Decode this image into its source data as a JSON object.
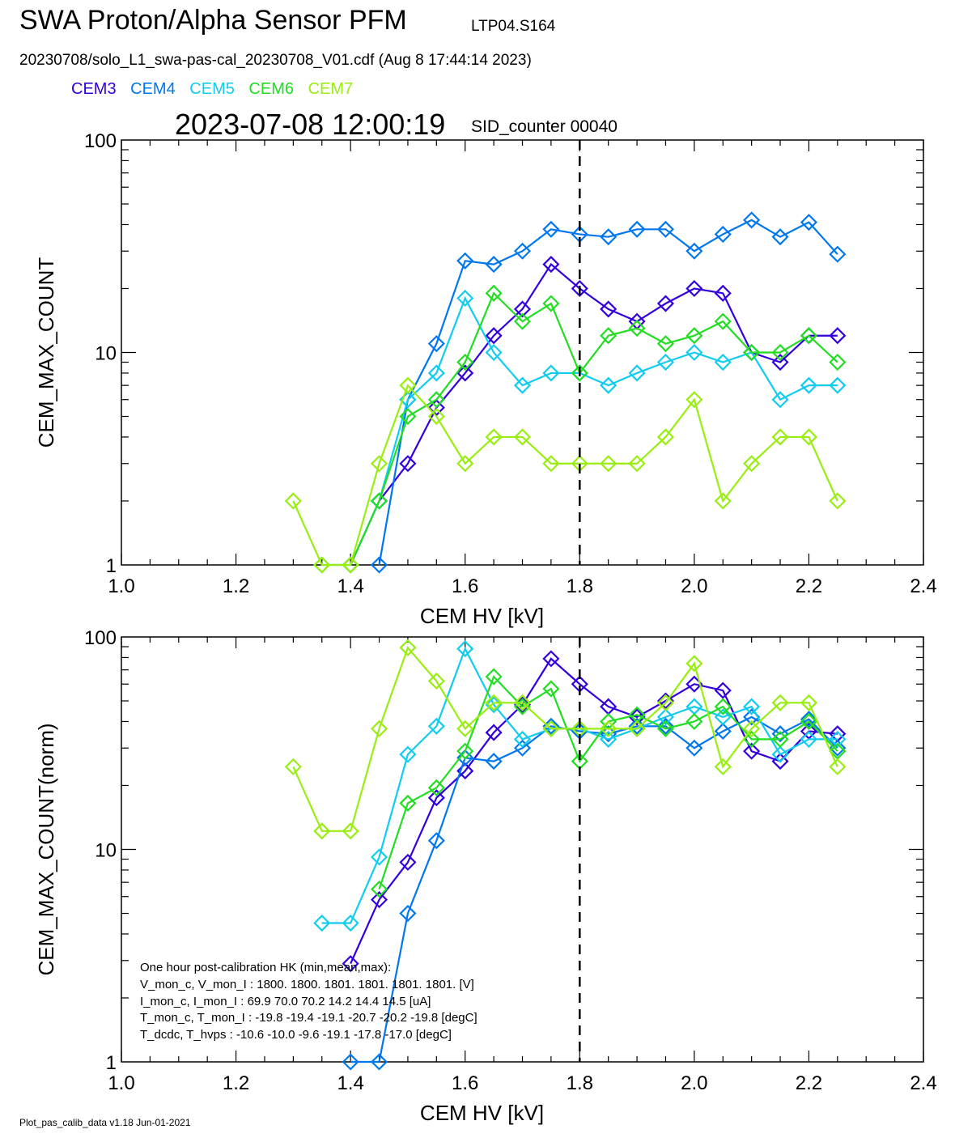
{
  "header": {
    "title": "SWA Proton/Alpha Sensor PFM",
    "subtitle": "LTP04.S164",
    "file_line": "20230708/solo_L1_swa-pas-cal_20230708_V01.cdf  (Aug  8 17:44:14 2023)",
    "timestamp": "2023-07-08 12:00:19",
    "sid_counter": "SID_counter 00040"
  },
  "legend": [
    {
      "name": "CEM3",
      "color": "#3300dd"
    },
    {
      "name": "CEM4",
      "color": "#0077ee"
    },
    {
      "name": "CEM5",
      "color": "#11ccee"
    },
    {
      "name": "CEM6",
      "color": "#22dd22"
    },
    {
      "name": "CEM7",
      "color": "#99ee11"
    }
  ],
  "footer": "Plot_pas_calib_data v1.18 Jun-01-2021",
  "hk_text": [
    "One hour post-calibration HK (min,mean,max):",
    "V_mon_c, V_mon_I :    1800.  1800.  1801.       1801.  1801.  1801. [V]",
    "I_mon_c,  I_mon_I :     69.9   70.0   70.2         14.2   14.4   14.5  [uA]",
    "T_mon_c, T_mon_I :   -19.8  -19.4  -19.1        -20.7  -20.2  -19.8  [degC]",
    "T_dcdc,    T_hvps :     -10.6  -10.0   -9.6        -19.1  -17.8  -17.0  [degC]"
  ],
  "chart_data": [
    {
      "type": "line",
      "xlabel": "CEM HV [kV]",
      "ylabel": "CEM_MAX_COUNT",
      "xlim": [
        1.0,
        2.4
      ],
      "ylim": [
        1,
        100
      ],
      "yscale": "log",
      "xticks": [
        "1.0",
        "1.2",
        "1.4",
        "1.6",
        "1.8",
        "2.0",
        "2.2",
        "2.4"
      ],
      "yticks": [
        "1",
        "10",
        "100"
      ],
      "vline": 1.8,
      "series": [
        {
          "name": "CEM3",
          "color": "#3300dd",
          "x": [
            1.4,
            1.45,
            1.5,
            1.55,
            1.6,
            1.65,
            1.7,
            1.75,
            1.8,
            1.85,
            1.9,
            1.95,
            2.0,
            2.05,
            2.1,
            2.15,
            2.2,
            2.25
          ],
          "y": [
            1,
            2,
            3,
            5.5,
            8,
            12,
            16,
            26,
            20,
            16,
            14,
            17,
            20,
            19,
            10,
            9,
            12,
            12
          ]
        },
        {
          "name": "CEM4",
          "color": "#0077ee",
          "x": [
            1.45,
            1.5,
            1.55,
            1.6,
            1.65,
            1.7,
            1.75,
            1.8,
            1.85,
            1.9,
            1.95,
            2.0,
            2.05,
            2.1,
            2.15,
            2.2,
            2.25
          ],
          "y": [
            1,
            6,
            11,
            27,
            26,
            30,
            38,
            36,
            35,
            38,
            38,
            30,
            36,
            42,
            35,
            41,
            29
          ]
        },
        {
          "name": "CEM5",
          "color": "#11ccee",
          "x": [
            1.35,
            1.4,
            1.45,
            1.5,
            1.55,
            1.6,
            1.65,
            1.7,
            1.75,
            1.8,
            1.85,
            1.9,
            1.95,
            2.0,
            2.05,
            2.1,
            2.15,
            2.2,
            2.25
          ],
          "y": [
            1,
            1,
            2,
            6,
            8,
            18,
            10,
            7,
            8,
            8,
            7,
            8,
            9,
            10,
            9,
            10,
            6,
            7,
            7
          ]
        },
        {
          "name": "CEM6",
          "color": "#22dd22",
          "x": [
            1.4,
            1.45,
            1.5,
            1.55,
            1.6,
            1.65,
            1.7,
            1.75,
            1.8,
            1.85,
            1.9,
            1.95,
            2.0,
            2.05,
            2.1,
            2.15,
            2.2,
            2.25
          ],
          "y": [
            1,
            2,
            5,
            6,
            9,
            19,
            14,
            17,
            8,
            12,
            13,
            11,
            12,
            14,
            10,
            10,
            12,
            9
          ]
        },
        {
          "name": "CEM7",
          "color": "#99ee11",
          "x": [
            1.3,
            1.35,
            1.4,
            1.45,
            1.5,
            1.55,
            1.6,
            1.65,
            1.7,
            1.75,
            1.8,
            1.85,
            1.9,
            1.95,
            2.0,
            2.05,
            2.1,
            2.15,
            2.2,
            2.25
          ],
          "y": [
            2,
            1,
            1,
            3,
            7,
            5,
            3,
            4,
            4,
            3,
            3,
            3,
            3,
            4,
            6,
            2,
            3,
            4,
            4,
            2
          ]
        }
      ]
    },
    {
      "type": "line",
      "xlabel": "CEM HV [kV]",
      "ylabel": "CEM_MAX_COUNT(norm)",
      "xlim": [
        1.0,
        2.4
      ],
      "ylim": [
        1,
        100
      ],
      "yscale": "log",
      "xticks": [
        "1.0",
        "1.2",
        "1.4",
        "1.6",
        "1.8",
        "2.0",
        "2.2",
        "2.4"
      ],
      "yticks": [
        "1",
        "10",
        "100"
      ],
      "vline": 1.8,
      "series": [
        {
          "name": "CEM3",
          "color": "#3300dd",
          "x": [
            1.4,
            1.45,
            1.5,
            1.55,
            1.6,
            1.65,
            1.7,
            1.75,
            1.8,
            1.85,
            1.9,
            1.95,
            2.0,
            2.05,
            2.1,
            2.15,
            2.2,
            2.25
          ],
          "y": [
            2.9,
            5.8,
            8.7,
            17.5,
            23.4,
            35.5,
            48,
            79,
            60,
            47,
            42,
            50,
            60,
            56,
            29,
            26,
            36,
            35
          ]
        },
        {
          "name": "CEM4",
          "color": "#0077ee",
          "x": [
            1.4,
            1.45,
            1.5,
            1.55,
            1.6,
            1.65,
            1.7,
            1.75,
            1.8,
            1.85,
            1.9,
            1.95,
            2.0,
            2.05,
            2.1,
            2.15,
            2.2,
            2.25
          ],
          "y": [
            1.0,
            1.0,
            5.0,
            11,
            27,
            26,
            30,
            38,
            36,
            35,
            38,
            38,
            30,
            36,
            42,
            35,
            41,
            30
          ]
        },
        {
          "name": "CEM5",
          "color": "#11ccee",
          "x": [
            1.35,
            1.4,
            1.45,
            1.5,
            1.55,
            1.6,
            1.65,
            1.7,
            1.75,
            1.8,
            1.85,
            1.9,
            1.95,
            2.0,
            2.05,
            2.1,
            2.15,
            2.2,
            2.25
          ],
          "y": [
            4.5,
            4.5,
            9.2,
            28,
            38,
            88,
            48,
            33,
            37,
            37,
            33,
            37,
            42,
            47,
            42,
            47,
            28,
            33,
            33
          ]
        },
        {
          "name": "CEM6",
          "color": "#22dd22",
          "x": [
            1.45,
            1.5,
            1.55,
            1.6,
            1.65,
            1.7,
            1.75,
            1.8,
            1.85,
            1.9,
            1.95,
            2.0,
            2.05,
            2.1,
            2.15,
            2.2,
            2.25
          ],
          "y": [
            6.5,
            16.5,
            19.5,
            29,
            65,
            47,
            57,
            26,
            40,
            43,
            37,
            40,
            47,
            33,
            33,
            40,
            29
          ]
        },
        {
          "name": "CEM7",
          "color": "#99ee11",
          "x": [
            1.3,
            1.35,
            1.4,
            1.45,
            1.5,
            1.55,
            1.6,
            1.65,
            1.7,
            1.75,
            1.8,
            1.85,
            1.9,
            1.95,
            2.0,
            2.05,
            2.1,
            2.15,
            2.2,
            2.25
          ],
          "y": [
            24.5,
            12.2,
            12.2,
            37,
            89,
            62,
            37,
            49,
            49,
            37,
            37,
            37,
            37,
            49,
            75,
            24.5,
            37,
            49,
            49,
            24.5
          ]
        }
      ]
    }
  ]
}
